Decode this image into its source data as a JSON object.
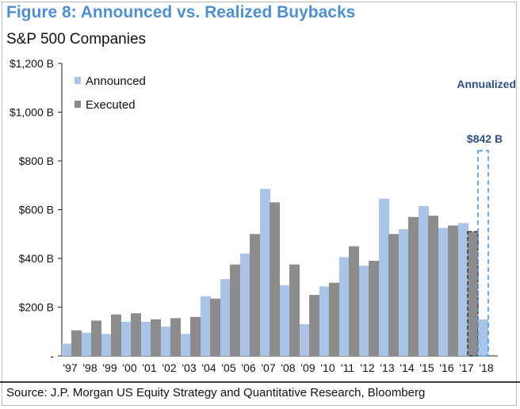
{
  "header": {
    "title": "Figure 8: Announced vs. Realized Buybacks",
    "subtitle": "S&P 500 Companies"
  },
  "footer": {
    "source": "Source: J.P. Morgan US Equity Strategy and Quantitative Research, Bloomberg"
  },
  "chart_data": {
    "type": "bar",
    "title": "Figure 8: Announced vs. Realized Buybacks",
    "subtitle": "S&P 500 Companies",
    "xlabel": "",
    "ylabel": "",
    "ylim": [
      0,
      1200
    ],
    "y_ticks": [
      0,
      200,
      400,
      600,
      800,
      1000,
      1200
    ],
    "y_tick_labels": [
      "-",
      "$200 B",
      "$400 B",
      "$600 B",
      "$800 B",
      "$1,000 B",
      "$1,200 B"
    ],
    "categories": [
      "'97",
      "'98",
      "'99",
      "'00",
      "'01",
      "'02",
      "'03",
      "'04",
      "'05",
      "'06",
      "'07",
      "'08",
      "'09",
      "'10",
      "'11",
      "'12",
      "'13",
      "'14",
      "'15",
      "'16",
      "'17",
      "'18"
    ],
    "series": [
      {
        "name": "Announced",
        "color": "#a9c4e6",
        "values": [
          50,
          95,
          90,
          140,
          140,
          120,
          90,
          245,
          315,
          420,
          685,
          290,
          130,
          285,
          405,
          370,
          645,
          520,
          615,
          525,
          545,
          150
        ]
      },
      {
        "name": "Executed",
        "color": "#8c8c8c",
        "values": [
          105,
          145,
          170,
          175,
          150,
          155,
          160,
          235,
          375,
          500,
          630,
          375,
          250,
          300,
          450,
          390,
          500,
          570,
          575,
          535,
          510,
          null
        ]
      }
    ],
    "annualized": {
      "label": "Annualized",
      "value": 842,
      "value_label": "$842 B",
      "category": "'18",
      "color": "#3d8fd8",
      "label_color": "#2f4f80"
    },
    "annualized_executed_outline": {
      "category": "'17",
      "color": "#1a1a1a"
    },
    "grid": false,
    "legend": {
      "position": "top-left",
      "entries": [
        "Announced",
        "Executed"
      ]
    }
  }
}
